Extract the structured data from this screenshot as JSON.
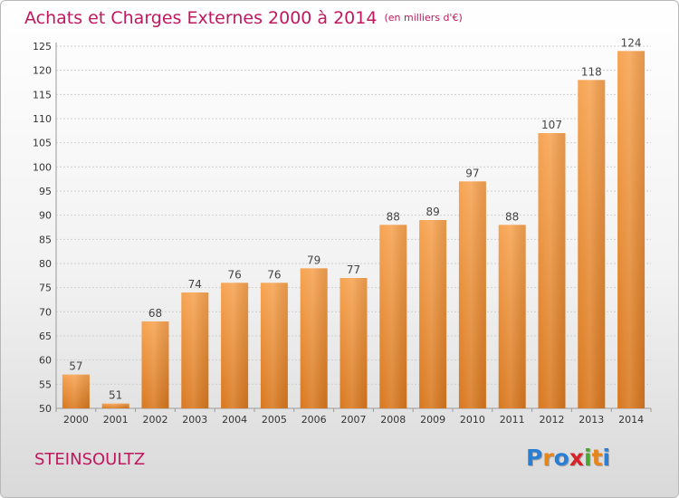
{
  "title": "Achats et Charges Externes 2000 à 2014",
  "unit": "(en milliers d'€)",
  "commune": "STEINSOULTZ",
  "logo": {
    "letters": [
      "P",
      "r",
      "o",
      "x",
      "i",
      "t",
      "i"
    ],
    "colors": [
      "#2a7fd4",
      "#e8851a",
      "#2a7fd4",
      "#d6232a",
      "#4aa832",
      "#e8851a",
      "#2a7fd4"
    ]
  },
  "chart_data": {
    "type": "bar",
    "title": "Achats et Charges Externes 2000 à 2014",
    "subtitle": "(en milliers d'€)",
    "categories": [
      "2000",
      "2001",
      "2002",
      "2003",
      "2004",
      "2005",
      "2006",
      "2007",
      "2008",
      "2009",
      "2010",
      "2011",
      "2012",
      "2013",
      "2014"
    ],
    "values": [
      57,
      51,
      68,
      74,
      76,
      76,
      79,
      77,
      88,
      89,
      97,
      88,
      107,
      118,
      124
    ],
    "ylim": [
      50,
      125
    ],
    "yticks": [
      50,
      55,
      60,
      65,
      70,
      75,
      80,
      85,
      90,
      95,
      100,
      105,
      110,
      115,
      120,
      125
    ],
    "grid": true,
    "bar_color": "#f29a3e",
    "xlabel": "",
    "ylabel": ""
  }
}
